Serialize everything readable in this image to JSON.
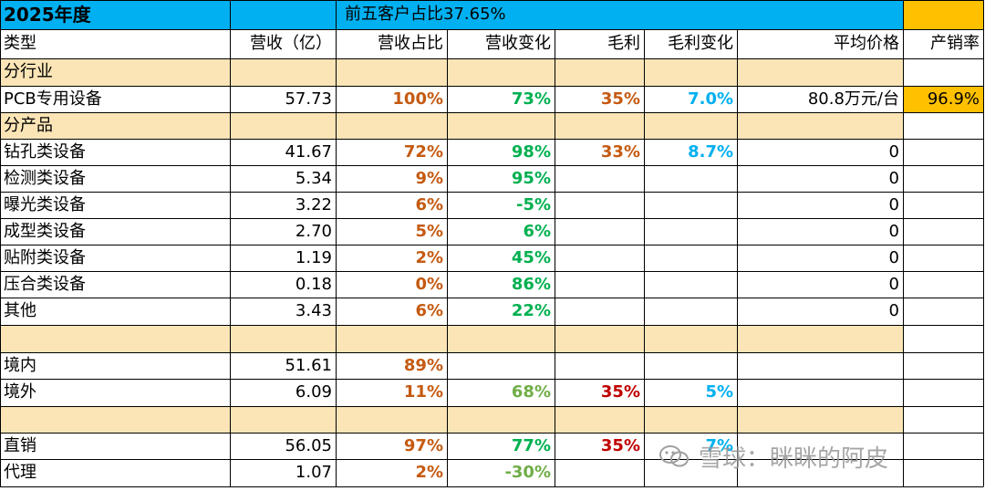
{
  "title_bar": {
    "year": "2025年度",
    "top5_share": "前五客户占比37.65%"
  },
  "columns": [
    "类型",
    "营收（亿）",
    "营收占比",
    "营收变化",
    "毛利",
    "毛利变化",
    "平均价格",
    "产销率"
  ],
  "rows": [
    {
      "kind": "section",
      "label": "分行业"
    },
    {
      "kind": "data",
      "label": "PCB专用设备",
      "revenue": "57.73",
      "share": "100%",
      "rev_change": "73%",
      "margin": "35%",
      "margin_change": "7.0%",
      "avg_price": "80.8万元/台",
      "output_sales_ratio": "96.9%"
    },
    {
      "kind": "section",
      "label": "分产品"
    },
    {
      "kind": "data",
      "label": "钻孔类设备",
      "revenue": "41.67",
      "share": "72%",
      "rev_change": "98%",
      "margin": "33%",
      "margin_change": "8.7%",
      "avg_price": "0",
      "output_sales_ratio": ""
    },
    {
      "kind": "data",
      "label": "检测类设备",
      "revenue": "5.34",
      "share": "9%",
      "rev_change": "95%",
      "margin": "",
      "margin_change": "",
      "avg_price": "0",
      "output_sales_ratio": ""
    },
    {
      "kind": "data",
      "label": "曝光类设备",
      "revenue": "3.22",
      "share": "6%",
      "rev_change": "-5%",
      "margin": "",
      "margin_change": "",
      "avg_price": "0",
      "output_sales_ratio": ""
    },
    {
      "kind": "data",
      "label": "成型类设备",
      "revenue": "2.70",
      "share": "5%",
      "rev_change": "6%",
      "margin": "",
      "margin_change": "",
      "avg_price": "0",
      "output_sales_ratio": ""
    },
    {
      "kind": "data",
      "label": "贴附类设备",
      "revenue": "1.19",
      "share": "2%",
      "rev_change": "45%",
      "margin": "",
      "margin_change": "",
      "avg_price": "0",
      "output_sales_ratio": ""
    },
    {
      "kind": "data",
      "label": "压合类设备",
      "revenue": "0.18",
      "share": "0%",
      "rev_change": "86%",
      "margin": "",
      "margin_change": "",
      "avg_price": "0",
      "output_sales_ratio": ""
    },
    {
      "kind": "data",
      "label": "其他",
      "revenue": "3.43",
      "share": "6%",
      "rev_change": "22%",
      "margin": "",
      "margin_change": "",
      "avg_price": "0",
      "output_sales_ratio": ""
    },
    {
      "kind": "section",
      "label": ""
    },
    {
      "kind": "data",
      "label": "境内",
      "revenue": "51.61",
      "share": "89%",
      "rev_change": "",
      "margin": "",
      "margin_change": "",
      "avg_price": "",
      "output_sales_ratio": ""
    },
    {
      "kind": "data",
      "label": "境外",
      "revenue": "6.09",
      "share": "11%",
      "rev_change": "68%",
      "margin": "35%",
      "margin_change": "5%",
      "avg_price": "",
      "output_sales_ratio": ""
    },
    {
      "kind": "section",
      "label": ""
    },
    {
      "kind": "data",
      "label": "直销",
      "revenue": "56.05",
      "share": "97%",
      "rev_change": "77%",
      "margin": "35%",
      "margin_change": "7%",
      "avg_price": "",
      "output_sales_ratio": ""
    },
    {
      "kind": "data",
      "label": "代理",
      "revenue": "1.07",
      "share": "2%",
      "rev_change": "-30%",
      "margin": "",
      "margin_change": "",
      "avg_price": "",
      "output_sales_ratio": ""
    }
  ],
  "colors": {
    "title_bar": "#00b0f0",
    "section_band": "#fbe5b6",
    "highlight": "#ffc000",
    "share_text": "#c55a11",
    "change_text_bright": "#00b050",
    "change_text_soft": "#70ad47",
    "margin_text_primary": "#c55a11",
    "margin_text_alt": "#c00000",
    "margin_change_text": "#00b0f0",
    "grid_line": "#000000",
    "watermark_text": "#999999"
  },
  "watermark": {
    "icon": "wechat-icon",
    "text": "雪球：眯眯的阿皮"
  }
}
